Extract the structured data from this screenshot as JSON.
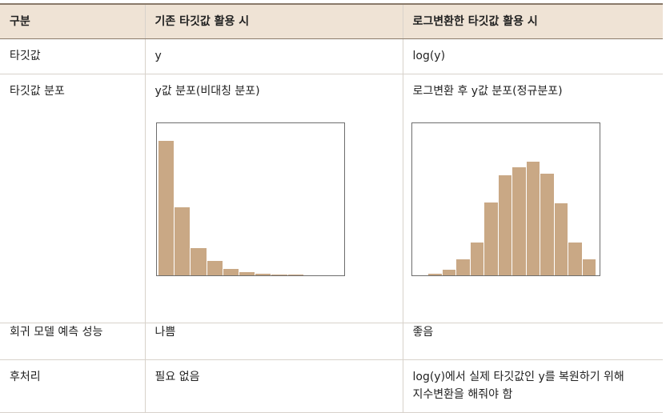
{
  "table": {
    "headers": [
      "구분",
      "기존 타깃값 활용 시",
      "로그변환한 타깃값 활용 시"
    ],
    "rows": [
      {
        "label": "타깃값",
        "existing": "y",
        "log": "log(y)"
      },
      {
        "label": "타깃값 분포",
        "existing": "y값 분포(비대칭 분포)",
        "log": "로그변환 후 y값 분포(정규분포)"
      },
      {
        "label": "회귀 모델 예측 성능",
        "existing": "나쁨",
        "log": "좋음"
      },
      {
        "label": "후처리",
        "existing": "필요 없음",
        "log_line1": "log(y)에서 실제 타깃값인 y를 복원하기 위해",
        "log_line2": "지수변환을 해줘야 함"
      }
    ]
  },
  "colors": {
    "header_bg": "#efe3d5",
    "bar": "#c9a885",
    "frame": "#6d6d6d"
  },
  "chart_data": [
    {
      "type": "bar",
      "title": "",
      "values": [
        100,
        50.5,
        20.5,
        10.5,
        4.5,
        2.2,
        1.2,
        0.5,
        0.3
      ],
      "ylim": [
        0,
        100
      ],
      "grid": false
    },
    {
      "type": "bar",
      "title": "",
      "values": [
        1,
        4,
        12,
        25,
        56,
        77,
        83,
        87,
        78,
        55,
        25,
        12
      ],
      "ylim": [
        0,
        100
      ],
      "grid": false
    }
  ]
}
